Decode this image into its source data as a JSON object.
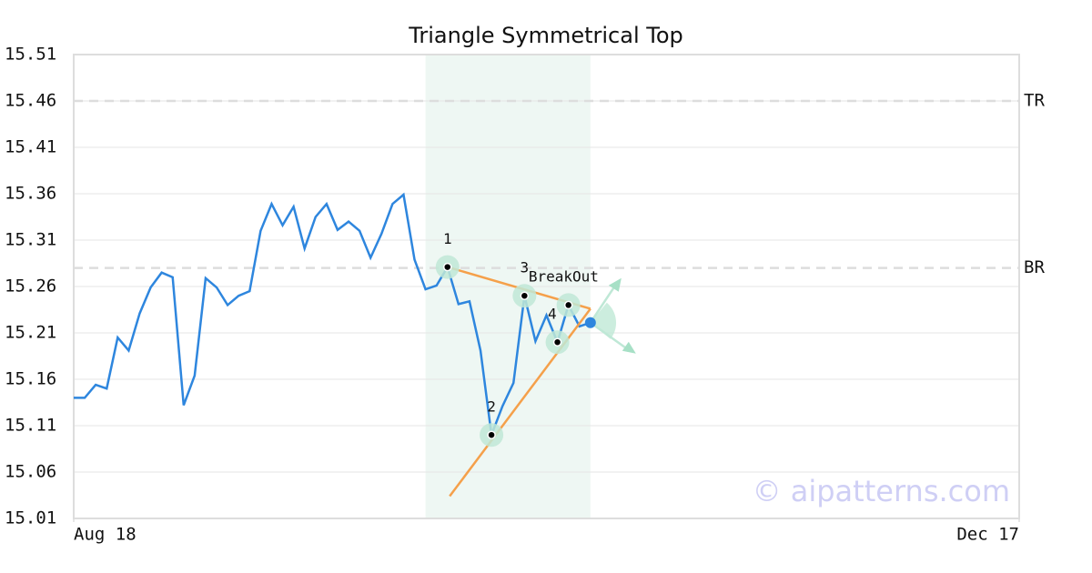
{
  "chart_data": {
    "type": "line",
    "title": "Triangle Symmetrical Top",
    "watermark": "© aipatterns.com",
    "x": [
      0,
      1,
      2,
      3,
      4,
      5,
      6,
      7,
      8,
      9,
      10,
      11,
      12,
      13,
      14,
      15,
      16,
      17,
      18,
      19,
      20,
      21,
      22,
      23,
      24,
      25,
      26,
      27,
      28,
      29,
      30,
      31,
      32,
      33,
      34,
      35,
      36,
      37,
      38,
      39,
      40,
      41,
      42,
      43,
      44,
      45,
      46,
      47
    ],
    "series": [
      {
        "color": "#2e86de",
        "values": [
          15.14,
          15.14,
          15.154,
          15.15,
          15.205,
          15.191,
          15.231,
          15.259,
          15.275,
          15.27,
          15.132,
          15.164,
          15.269,
          15.259,
          15.24,
          15.25,
          15.255,
          15.32,
          15.349,
          15.326,
          15.346,
          15.301,
          15.335,
          15.349,
          15.321,
          15.33,
          15.32,
          15.291,
          15.317,
          15.349,
          15.359,
          15.289,
          15.257,
          15.261,
          15.281,
          15.241,
          15.244,
          15.191,
          15.1,
          15.131,
          15.156,
          15.25,
          15.201,
          15.229,
          15.2,
          15.24,
          15.217,
          15.221
        ]
      }
    ],
    "xlim": [
      0,
      86
    ],
    "xticks": [
      {
        "value": 0,
        "label": "Aug 18"
      },
      {
        "value": 86,
        "label": "Dec 17"
      }
    ],
    "ylim": [
      15.01,
      15.51
    ],
    "yticks": [
      15.01,
      15.06,
      15.11,
      15.16,
      15.21,
      15.26,
      15.31,
      15.36,
      15.41,
      15.46,
      15.51
    ],
    "grid": true,
    "pattern_span": [
      32,
      47
    ],
    "levels": [
      {
        "name": "TR",
        "value": 15.46
      },
      {
        "name": "BR",
        "value": 15.28
      }
    ],
    "trendlines": [
      {
        "color": "#f5a04a",
        "x": [
          34,
          47
        ],
        "values": [
          15.281,
          15.236
        ]
      },
      {
        "color": "#f5a04a",
        "x": [
          34.2,
          47
        ],
        "values": [
          15.034,
          15.236
        ]
      }
    ],
    "pattern_points": [
      {
        "label": "1",
        "x": 34,
        "value": 15.281
      },
      {
        "label": "2",
        "x": 38,
        "value": 15.1
      },
      {
        "label": "3",
        "x": 41,
        "value": 15.25
      },
      {
        "label": "4",
        "x": 44,
        "value": 15.2
      },
      {
        "x": 45,
        "value": 15.24
      }
    ],
    "breakout": {
      "label": "BreakOut",
      "x": 47,
      "value": 15.221,
      "color": "#2e86de"
    }
  }
}
